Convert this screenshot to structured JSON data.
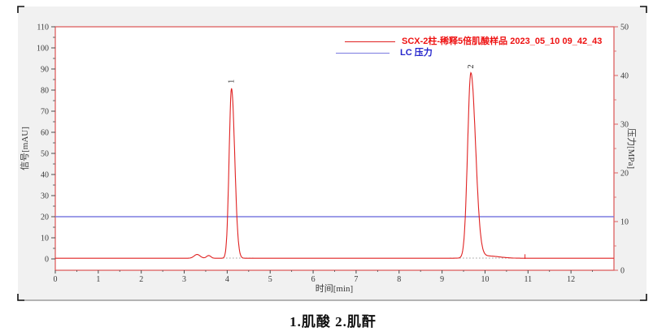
{
  "widget": {
    "type_label": "chromatogram-report-object",
    "caption": "1.肌酸  2.肌酐"
  },
  "colors": {
    "signal_red": "#e02222",
    "frame_red": "#dd6060",
    "legend_red": "#ee1111",
    "pressure_blue": "#7b7be0",
    "legend_blue": "#2424cc",
    "chart_bg": "#f1f1f1",
    "plot_bg": "#ffffff",
    "tick_mark": "#4a4a4a",
    "tick_text": "#3a3a3a",
    "baseline_dots": "#9a9a9a",
    "corner_marks": "#111111"
  },
  "chart_data": {
    "type": "line",
    "title": "",
    "xlabel": "时间[min]",
    "ylabel_left": "信号[mAU]",
    "ylabel_right": "压力[MPa]",
    "x_range": [
      0,
      13.0
    ],
    "x_ticks": [
      0,
      1,
      2,
      3,
      4,
      5,
      6,
      7,
      8,
      9,
      10,
      11,
      12
    ],
    "x_minor_step": 0.5,
    "y_left_ticks": [
      0,
      10,
      20,
      30,
      40,
      50,
      60,
      70,
      80,
      90,
      100,
      110
    ],
    "y_left_max": 110,
    "y_right_ticks": [
      0,
      10,
      20,
      30,
      40,
      50
    ],
    "y_right_range": [
      0,
      50
    ],
    "grid": "off",
    "legend_position": "top-right-inside",
    "legend": [
      {
        "label": "SCX-2柱-稀释5倍肌酸样品 2023_05_10 09_42_43",
        "color": "#ee1111",
        "series": "signal"
      },
      {
        "label": "LC 压力",
        "color": "#2424cc",
        "series": "pressure"
      }
    ],
    "pressure_series": {
      "value_MPa": 11.0,
      "value_mAU_equivalent": 20.4,
      "shape": "flat-line"
    },
    "signal_series": {
      "baseline_mAU": 0.3,
      "peaks": [
        {
          "label": "1",
          "compound": "肌酸",
          "rt_min": 4.1,
          "height_mAU": 80.5,
          "sigma_left_min": 0.055,
          "sigma_right_min": 0.075
        },
        {
          "label": "2",
          "compound": "肌酐",
          "rt_min": 9.67,
          "height_mAU": 87.5,
          "sigma_left_min": 0.075,
          "sigma_right_min": 0.11
        }
      ],
      "minor_bumps": [
        {
          "rt_min": 3.3,
          "height_mAU": 1.8,
          "sigma_min": 0.07
        },
        {
          "rt_min": 3.57,
          "height_mAU": 1.3,
          "sigma_min": 0.05
        },
        {
          "rt_min": 10.05,
          "height_mAU": 1.1,
          "sigma_min": 0.28
        }
      ],
      "integration_baselines": [
        {
          "from_min": 3.9,
          "to_min": 4.62
        },
        {
          "from_min": 9.18,
          "to_min": 10.6
        }
      ],
      "integration_marks_min": [
        10.93
      ]
    }
  }
}
